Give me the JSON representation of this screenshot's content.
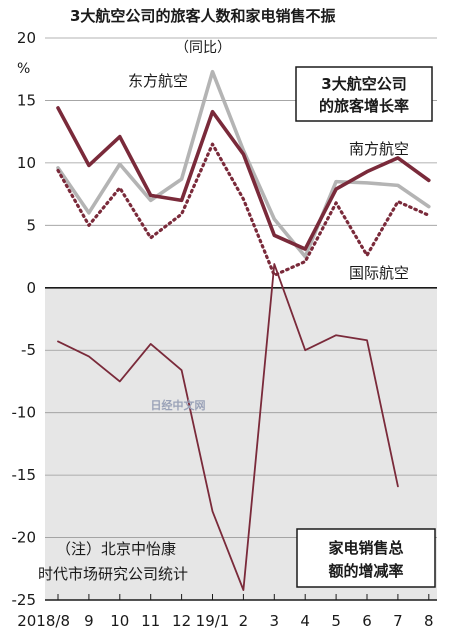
{
  "chart_data": {
    "type": "line",
    "title": "3大航空公司的旅客人数和家电销售不振",
    "subtitle": "（同比）",
    "unit": "%",
    "x": [
      "2018/8",
      "9",
      "10",
      "11",
      "12",
      "19/1",
      "2",
      "3",
      "4",
      "5",
      "6",
      "7",
      "8"
    ],
    "ylim": [
      -25,
      20
    ],
    "yticks": [
      20,
      15,
      10,
      5,
      0,
      -5,
      -10,
      -15,
      -20,
      -25
    ],
    "series": [
      {
        "name": "东方航空",
        "style": "solid",
        "color": "#b4b4b4",
        "values": [
          9.6,
          6.0,
          9.9,
          7.0,
          8.7,
          17.3,
          11.0,
          5.5,
          2.5,
          8.5,
          8.4,
          8.2,
          6.5
        ]
      },
      {
        "name": "南方航空",
        "style": "solid",
        "color": "#7a2a3a",
        "values": [
          14.4,
          9.8,
          12.1,
          7.4,
          7.0,
          14.1,
          10.7,
          4.2,
          3.1,
          7.9,
          9.3,
          10.4,
          8.6
        ]
      },
      {
        "name": "国际航空",
        "style": "dotted",
        "color": "#7a2a3a",
        "values": [
          9.4,
          5.0,
          8.0,
          4.0,
          5.9,
          11.5,
          7.1,
          1.0,
          2.1,
          6.8,
          2.6,
          6.9,
          5.8
        ]
      },
      {
        "name": "",
        "style": "thin",
        "color": "#7a2a3a",
        "values": [
          -4.3,
          -5.5,
          -7.5,
          -4.5,
          -6.6,
          -17.9,
          -24.2,
          1.9,
          -5.0,
          -3.8,
          -4.2,
          -15.9,
          null
        ]
      }
    ],
    "box_passenger": [
      "3大航空公司",
      "的旅客增长率"
    ],
    "box_appliance": [
      "家电销售总",
      "额的增减率"
    ],
    "note": [
      "（注）北京中怡康",
      "时代市场研究公司统计"
    ],
    "watermark": "日经中文网"
  },
  "colors": {
    "negative_background": "#e6e6e6",
    "axis": "#1a1a1a"
  }
}
